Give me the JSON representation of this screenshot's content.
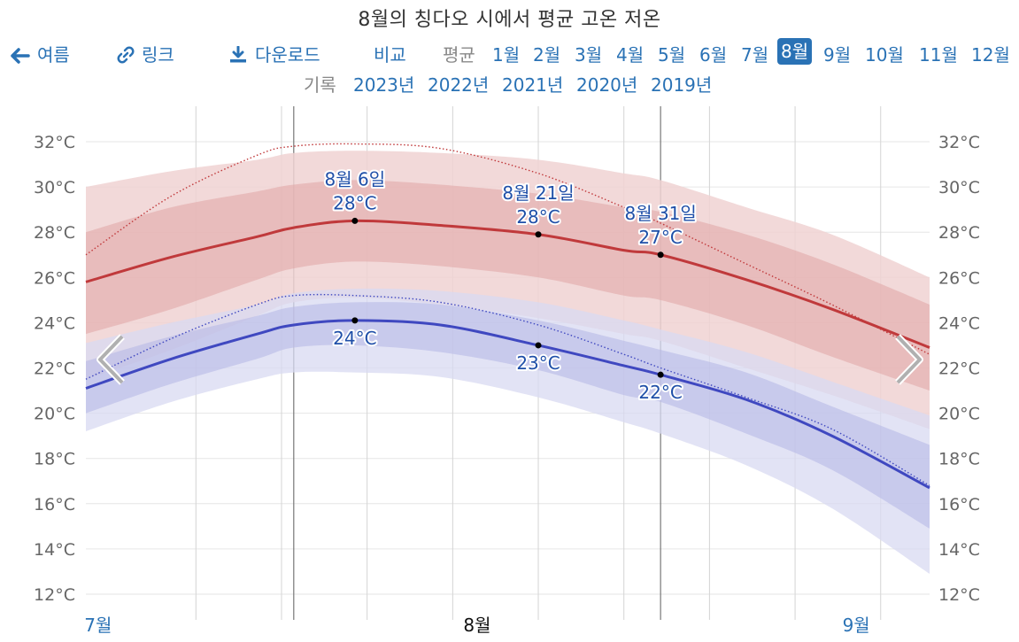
{
  "title": "8월의 칭다오 시에서 평균 고온 저온",
  "toolbar": {
    "back_label": "여름",
    "link_label": "링크",
    "download_label": "다운로드",
    "compare_label": "비교",
    "average_label": "평균",
    "months": [
      "1월",
      "2월",
      "3월",
      "4월",
      "5월",
      "6월",
      "7월",
      "8월",
      "9월",
      "10월",
      "11월",
      "12월"
    ],
    "selected_month": "8월"
  },
  "history": {
    "label": "기록",
    "years": [
      "2023년",
      "2022년",
      "2021년",
      "2020년",
      "2019년"
    ]
  },
  "colors": {
    "link": "#2a72b5",
    "high_line": "#c0393b",
    "low_line": "#3f48c0",
    "high_band_inner": "#e0a4a4",
    "high_band_outer": "#f0d2d2",
    "low_band_inner": "#b7b9e6",
    "low_band_outer": "#d8daf2"
  },
  "chart_data": {
    "type": "area",
    "x_unit": "day",
    "xlim": [
      "07-15",
      "09-22"
    ],
    "ylim": [
      12,
      33
    ],
    "y_ticks": [
      "12°C",
      "14°C",
      "16°C",
      "18°C",
      "20°C",
      "22°C",
      "24°C",
      "26°C",
      "28°C",
      "30°C",
      "32°C"
    ],
    "x_month_labels": [
      {
        "label": "7월",
        "date": "07-16"
      },
      {
        "label": "8월",
        "date": "08-16"
      },
      {
        "label": "9월",
        "date": "09-16"
      }
    ],
    "highlight_range": [
      "08-01",
      "08-31"
    ],
    "grid": true,
    "dates": [
      "07-15",
      "07-22",
      "07-29",
      "08-01",
      "08-06",
      "08-13",
      "08-21",
      "08-28",
      "08-31",
      "09-07",
      "09-14",
      "09-22"
    ],
    "series": [
      {
        "name": "high_avg",
        "values": [
          25.8,
          26.9,
          27.8,
          28.2,
          28.5,
          28.3,
          27.9,
          27.2,
          27.0,
          25.9,
          24.6,
          22.9
        ]
      },
      {
        "name": "high_p25",
        "values": [
          23.5,
          24.6,
          25.9,
          26.4,
          26.7,
          26.5,
          26.0,
          25.2,
          25.0,
          23.9,
          22.5,
          21.0
        ]
      },
      {
        "name": "high_p75",
        "values": [
          28.0,
          29.1,
          29.8,
          30.1,
          30.3,
          30.1,
          29.7,
          29.1,
          28.9,
          27.9,
          26.6,
          24.8
        ]
      },
      {
        "name": "high_p10",
        "values": [
          21.5,
          22.8,
          24.3,
          24.9,
          25.1,
          24.8,
          24.2,
          23.5,
          23.2,
          22.0,
          20.8,
          19.3
        ]
      },
      {
        "name": "high_p90",
        "values": [
          30.0,
          30.7,
          31.2,
          31.5,
          31.6,
          31.5,
          31.2,
          30.6,
          30.3,
          29.1,
          27.9,
          26.0
        ]
      },
      {
        "name": "high_record_avg",
        "values": [
          27.0,
          29.6,
          31.4,
          31.8,
          31.9,
          31.7,
          30.6,
          29.1,
          28.4,
          26.6,
          24.8,
          22.6
        ]
      },
      {
        "name": "low_avg",
        "values": [
          21.1,
          22.4,
          23.5,
          23.9,
          24.1,
          23.9,
          23.0,
          22.1,
          21.7,
          20.6,
          19.0,
          16.7
        ]
      },
      {
        "name": "low_p25",
        "values": [
          20.0,
          21.3,
          22.4,
          22.9,
          23.0,
          22.7,
          21.9,
          20.8,
          20.5,
          19.1,
          17.5,
          14.9
        ]
      },
      {
        "name": "low_p75",
        "values": [
          22.3,
          23.4,
          24.3,
          24.7,
          24.9,
          24.8,
          24.1,
          23.2,
          22.8,
          21.8,
          20.3,
          18.6
        ]
      },
      {
        "name": "low_p10",
        "values": [
          19.2,
          20.5,
          21.5,
          21.8,
          21.8,
          21.6,
          20.7,
          19.6,
          19.1,
          17.7,
          15.8,
          12.9
        ]
      },
      {
        "name": "low_p90",
        "values": [
          23.1,
          24.0,
          24.8,
          25.3,
          25.5,
          25.4,
          24.9,
          24.1,
          23.7,
          22.7,
          21.4,
          19.9
        ]
      },
      {
        "name": "low_record_avg",
        "values": [
          21.5,
          23.3,
          24.8,
          25.2,
          25.2,
          24.9,
          23.9,
          22.6,
          22.0,
          20.7,
          19.3,
          16.8
        ]
      }
    ],
    "annotations": [
      {
        "date": "08-06",
        "label": "8월 6일",
        "high": 28.5,
        "high_label": "28°C",
        "low": 24.1,
        "low_label": "24°C"
      },
      {
        "date": "08-21",
        "label": "8월 21일",
        "high": 27.9,
        "high_label": "28°C",
        "low": 23.0,
        "low_label": "23°C"
      },
      {
        "date": "08-31",
        "label": "8월 31일",
        "high": 27.0,
        "high_label": "27°C",
        "low": 21.7,
        "low_label": "22°C"
      }
    ]
  }
}
